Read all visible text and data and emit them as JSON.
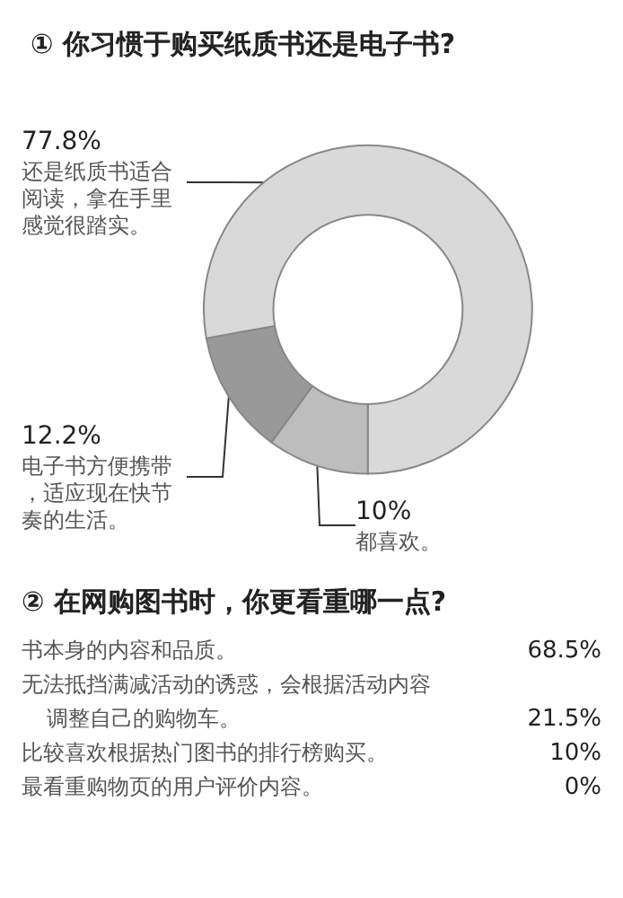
{
  "chart_data": [
    {
      "type": "donut",
      "title": "① 你习惯于购买纸质书还是电子书?",
      "categories": [
        "都喜欢。",
        "电子书方便携带，适应现在快节奏的生活。",
        "还是纸质书适合阅读，拿在手里感觉很踏实。"
      ],
      "values": [
        10,
        12.2,
        77.8
      ],
      "value_labels": [
        "10%",
        "12.2%",
        "77.8%"
      ],
      "colors": [
        "#bdbdbd",
        "#999999",
        "#d9d9d9"
      ]
    },
    {
      "type": "other",
      "title": "② 在网购图书时，你更看重哪一点?",
      "categories": [
        "书本身的内容和品质。",
        "无法抵挡满减活动的诱惑，会根据活动内容调整自己的购物车。",
        "比较喜欢根据热门图书的排行榜购买。",
        "最看重购物页的用户评价内容。"
      ],
      "value_labels": [
        "68.5%",
        "21.5%",
        "10%",
        "0%"
      ]
    }
  ]
}
